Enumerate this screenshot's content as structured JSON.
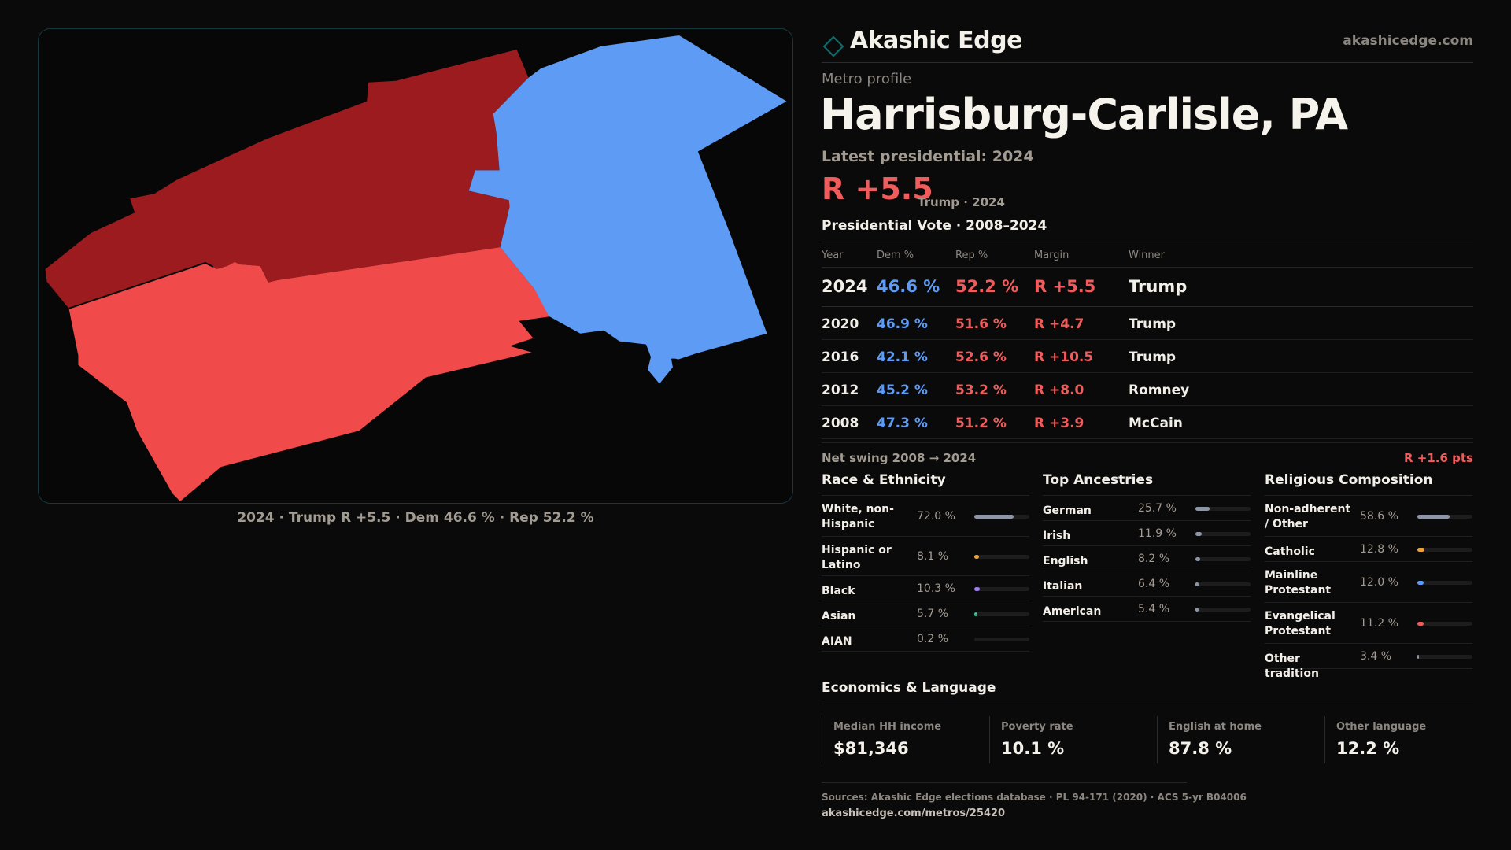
{
  "map": {
    "caption": "2024 · Trump R +5.5 · Dem 46.6 % · Rep 52.2 %",
    "colors": {
      "dark_red": "#9b1b1f",
      "red": "#f04a4a",
      "blue": "#5d9bf5",
      "border": "#15393f"
    }
  },
  "brand": {
    "name": "Akashic Edge",
    "url": "akashicedge.com",
    "icon": "diamond-logo-icon",
    "accent": "#0e6b6b"
  },
  "header": {
    "kicker": "Metro profile",
    "title": "Harrisburg-Carlisle, PA",
    "latest_label": "Latest presidential: 2024",
    "margin": "R +5.5",
    "margin_sub": "Trump · 2024"
  },
  "vote_table": {
    "title": "Presidential Vote · 2008–2024",
    "headers": {
      "year": "Year",
      "dem": "Dem %",
      "rep": "Rep %",
      "margin": "Margin",
      "winner": "Winner"
    },
    "rows": [
      {
        "year": "2024",
        "dem": "46.6 %",
        "rep": "52.2 %",
        "margin": "R +5.5",
        "winner": "Trump"
      },
      {
        "year": "2020",
        "dem": "46.9 %",
        "rep": "51.6 %",
        "margin": "R +4.7",
        "winner": "Trump"
      },
      {
        "year": "2016",
        "dem": "42.1 %",
        "rep": "52.6 %",
        "margin": "R +10.5",
        "winner": "Trump"
      },
      {
        "year": "2012",
        "dem": "45.2 %",
        "rep": "53.2 %",
        "margin": "R +8.0",
        "winner": "Romney"
      },
      {
        "year": "2008",
        "dem": "47.3 %",
        "rep": "51.2 %",
        "margin": "R +3.9",
        "winner": "McCain"
      }
    ],
    "swing_label": "Net swing 2008 → 2024",
    "swing_value": "R +1.6 pts"
  },
  "race": {
    "title": "Race & Ethnicity",
    "rows": [
      {
        "name": "White, non-Hispanic",
        "pct": "72.0 %",
        "value": 72.0,
        "color": "#8e96a6"
      },
      {
        "name": "Hispanic or Latino",
        "pct": "8.1 %",
        "value": 8.1,
        "color": "#e8a33a"
      },
      {
        "name": "Black",
        "pct": "10.3 %",
        "value": 10.3,
        "color": "#9a7ee8"
      },
      {
        "name": "Asian",
        "pct": "5.7 %",
        "value": 5.7,
        "color": "#3dbb8a"
      },
      {
        "name": "AIAN",
        "pct": "0.2 %",
        "value": 0.2,
        "color": "#8e96a6"
      }
    ]
  },
  "ancestry": {
    "title": "Top Ancestries",
    "rows": [
      {
        "name": "German",
        "pct": "25.7 %",
        "value": 25.7,
        "color": "#8e96a6"
      },
      {
        "name": "Irish",
        "pct": "11.9 %",
        "value": 11.9,
        "color": "#8e96a6"
      },
      {
        "name": "English",
        "pct": "8.2 %",
        "value": 8.2,
        "color": "#8e96a6"
      },
      {
        "name": "Italian",
        "pct": "6.4 %",
        "value": 6.4,
        "color": "#8e96a6"
      },
      {
        "name": "American",
        "pct": "5.4 %",
        "value": 5.4,
        "color": "#8e96a6"
      }
    ]
  },
  "religion": {
    "title": "Religious Composition",
    "rows": [
      {
        "name": "Non-adherent / Other",
        "pct": "58.6 %",
        "value": 58.6,
        "color": "#8e96a6"
      },
      {
        "name": "Catholic",
        "pct": "12.8 %",
        "value": 12.8,
        "color": "#e8a33a"
      },
      {
        "name": "Mainline Protestant",
        "pct": "12.0 %",
        "value": 12.0,
        "color": "#5d9bf5"
      },
      {
        "name": "Evangelical Protestant",
        "pct": "11.2 %",
        "value": 11.2,
        "color": "#f05c5c"
      },
      {
        "name": "Other tradition",
        "pct": "3.4 %",
        "value": 3.4,
        "color": "#8e96a6"
      }
    ]
  },
  "economics": {
    "title": "Economics & Language",
    "cards": [
      {
        "label": "Median HH income",
        "value": "$81,346"
      },
      {
        "label": "Poverty rate",
        "value": "10.1 %"
      },
      {
        "label": "English at home",
        "value": "87.8 %"
      },
      {
        "label": "Other language",
        "value": "12.2 %"
      }
    ]
  },
  "footer": {
    "sources": "Sources: Akashic Edge elections database · PL 94-171 (2020) · ACS 5-yr B04006",
    "url": "akashicedge.com/metros/25420"
  }
}
